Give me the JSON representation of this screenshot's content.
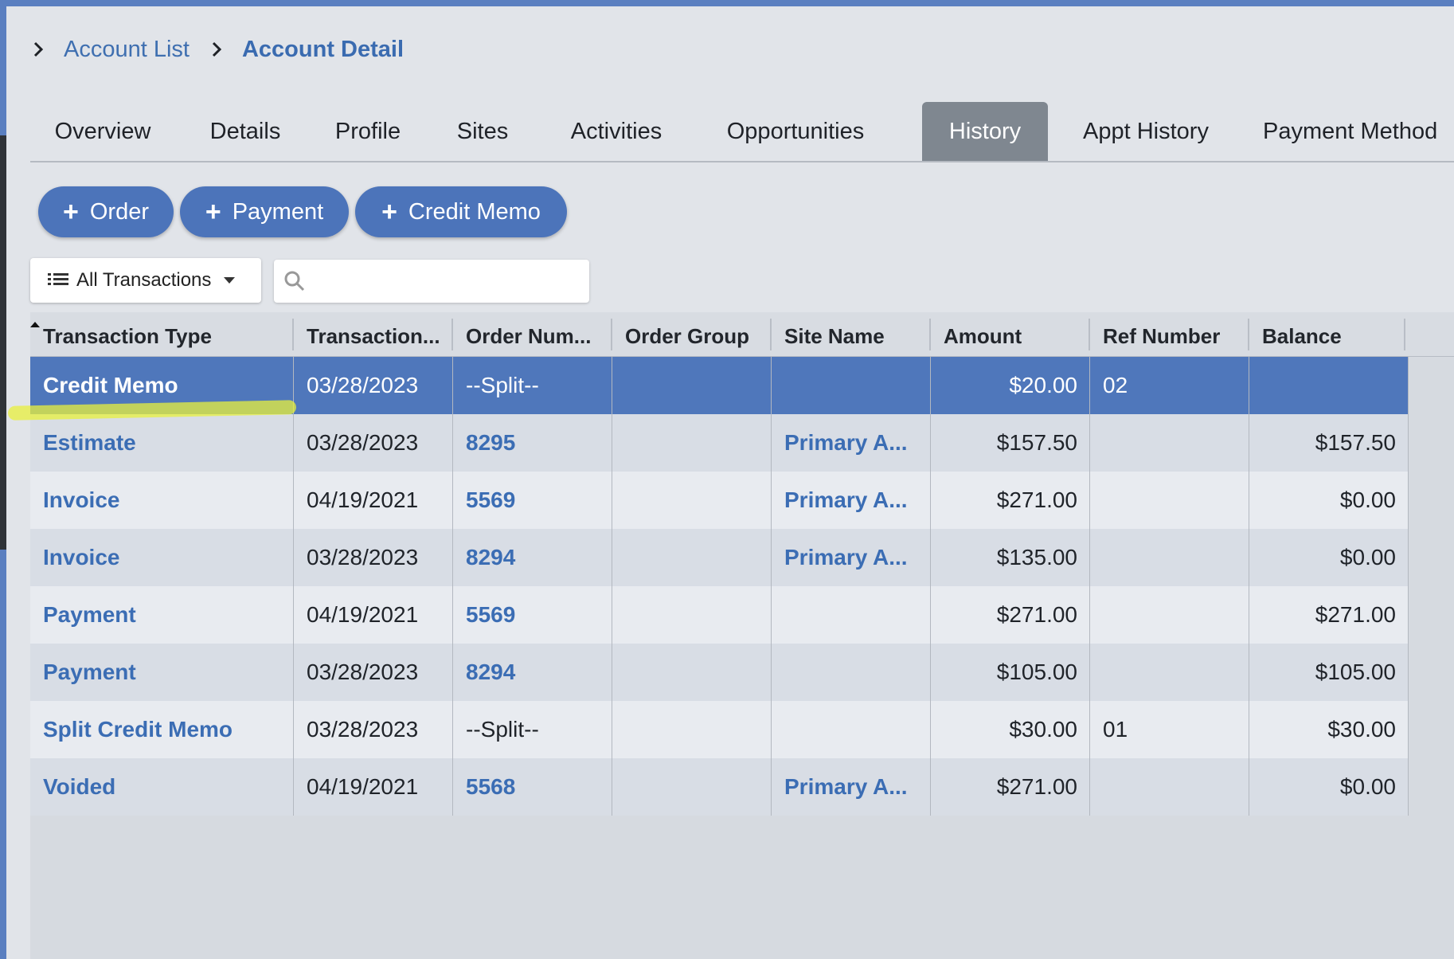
{
  "breadcrumb": {
    "items": [
      "Account List",
      "Account Detail"
    ]
  },
  "tabs": [
    {
      "label": "Overview",
      "active": false
    },
    {
      "label": "Details",
      "active": false
    },
    {
      "label": "Profile",
      "active": false
    },
    {
      "label": "Sites",
      "active": false
    },
    {
      "label": "Activities",
      "active": false
    },
    {
      "label": "Opportunities",
      "active": false
    },
    {
      "label": "History",
      "active": true
    },
    {
      "label": "Appt History",
      "active": false
    },
    {
      "label": "Payment Method",
      "active": false
    }
  ],
  "actions": {
    "order_label": "Order",
    "payment_label": "Payment",
    "credit_memo_label": "Credit Memo"
  },
  "filter": {
    "selected": "All Transactions",
    "icon": "list-icon"
  },
  "search": {
    "value": "",
    "placeholder": ""
  },
  "grid": {
    "columns": [
      "Transaction Type",
      "Transaction...",
      "Order Num...",
      "Order Group",
      "Site Name",
      "Amount",
      "Ref Number",
      "Balance"
    ],
    "rows": [
      {
        "type": "Credit Memo",
        "date": "03/28/2023",
        "order": "--Split--",
        "group": "",
        "site": "",
        "amount": "$20.00",
        "ref": "02",
        "balance": "",
        "selected": true
      },
      {
        "type": "Estimate",
        "date": "03/28/2023",
        "order": "8295",
        "group": "",
        "site": "Primary A...",
        "amount": "$157.50",
        "ref": "",
        "balance": "$157.50",
        "selected": false
      },
      {
        "type": "Invoice",
        "date": "04/19/2021",
        "order": "5569",
        "group": "",
        "site": "Primary A...",
        "amount": "$271.00",
        "ref": "",
        "balance": "$0.00",
        "selected": false
      },
      {
        "type": "Invoice",
        "date": "03/28/2023",
        "order": "8294",
        "group": "",
        "site": "Primary A...",
        "amount": "$135.00",
        "ref": "",
        "balance": "$0.00",
        "selected": false
      },
      {
        "type": "Payment",
        "date": "04/19/2021",
        "order": "5569",
        "group": "",
        "site": "",
        "amount": "$271.00",
        "ref": "",
        "balance": "$271.00",
        "selected": false
      },
      {
        "type": "Payment",
        "date": "03/28/2023",
        "order": "8294",
        "group": "",
        "site": "",
        "amount": "$105.00",
        "ref": "",
        "balance": "$105.00",
        "selected": false
      },
      {
        "type": "Split Credit Memo",
        "date": "03/28/2023",
        "order": "--Split--",
        "group": "",
        "site": "",
        "amount": "$30.00",
        "ref": "01",
        "balance": "$30.00",
        "selected": false
      },
      {
        "type": "Voided",
        "date": "04/19/2021",
        "order": "5568",
        "group": "",
        "site": "Primary A...",
        "amount": "$271.00",
        "ref": "",
        "balance": "$0.00",
        "selected": false
      }
    ]
  },
  "colors": {
    "accent": "#4c74ba",
    "selected_row": "#4f77bb",
    "link": "#3b6db4",
    "active_tab": "#7f8790"
  }
}
